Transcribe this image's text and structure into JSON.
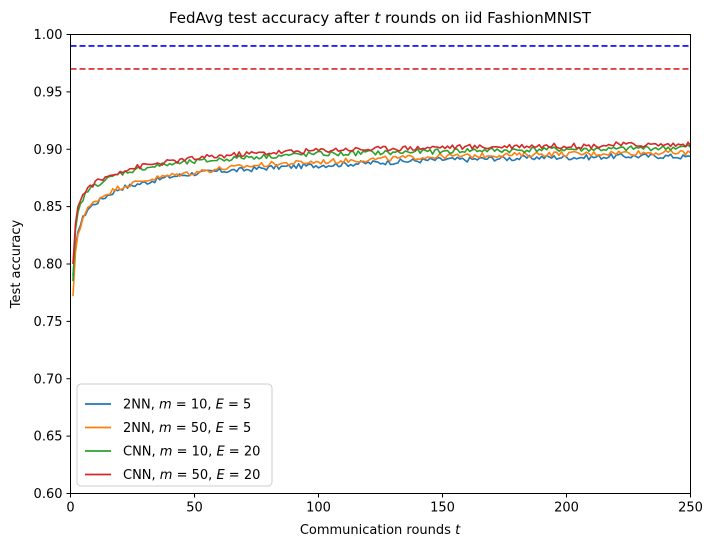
{
  "chart_data": {
    "type": "line",
    "title_parts": [
      "FedAvg test accuracy after ",
      "t",
      " rounds on iid FashionMNIST"
    ],
    "xlabel_parts": [
      "Communication rounds ",
      "t"
    ],
    "ylabel": "Test accuracy",
    "xlim": [
      0,
      250
    ],
    "ylim": [
      0.6,
      1.0
    ],
    "xticks": [
      0,
      50,
      100,
      150,
      200,
      250
    ],
    "xtick_labels": [
      "0",
      "50",
      "100",
      "150",
      "200",
      "250"
    ],
    "yticks": [
      0.6,
      0.65,
      0.7,
      0.75,
      0.8,
      0.85,
      0.9,
      0.95,
      1.0
    ],
    "ytick_labels": [
      "0.60",
      "0.65",
      "0.70",
      "0.75",
      "0.80",
      "0.85",
      "0.90",
      "0.95",
      "1.00"
    ],
    "grid": false,
    "legend_position": "lower-left",
    "reference_lines": [
      {
        "y": 0.99,
        "color": "#0000ff",
        "style": "dashed"
      },
      {
        "y": 0.97,
        "color": "#d62728",
        "style": "dashed"
      }
    ],
    "series": [
      {
        "legend_parts": [
          "2NN, ",
          "m",
          " = 10, ",
          "E",
          " = 5"
        ],
        "color": "#1f77b4",
        "x": [
          1,
          2,
          3,
          5,
          7,
          10,
          15,
          20,
          30,
          40,
          50,
          60,
          70,
          80,
          90,
          100,
          110,
          120,
          130,
          140,
          150,
          160,
          170,
          180,
          190,
          200,
          210,
          220,
          230,
          240,
          250
        ],
        "y": [
          0.79,
          0.815,
          0.828,
          0.84,
          0.848,
          0.853,
          0.86,
          0.866,
          0.871,
          0.876,
          0.879,
          0.881,
          0.882,
          0.884,
          0.885,
          0.886,
          0.887,
          0.888,
          0.889,
          0.89,
          0.891,
          0.891,
          0.892,
          0.892,
          0.893,
          0.893,
          0.893,
          0.894,
          0.894,
          0.894,
          0.893
        ]
      },
      {
        "legend_parts": [
          "2NN, ",
          "m",
          " = 50, ",
          "E",
          " = 5"
        ],
        "color": "#ff7f0e",
        "x": [
          1,
          2,
          3,
          5,
          7,
          10,
          15,
          20,
          30,
          40,
          50,
          60,
          70,
          80,
          90,
          100,
          110,
          120,
          130,
          140,
          150,
          160,
          170,
          180,
          190,
          200,
          210,
          220,
          230,
          240,
          250
        ],
        "y": [
          0.772,
          0.81,
          0.826,
          0.84,
          0.848,
          0.855,
          0.862,
          0.867,
          0.873,
          0.877,
          0.88,
          0.883,
          0.885,
          0.887,
          0.888,
          0.889,
          0.89,
          0.891,
          0.892,
          0.893,
          0.894,
          0.894,
          0.895,
          0.895,
          0.896,
          0.896,
          0.896,
          0.897,
          0.897,
          0.897,
          0.897
        ]
      },
      {
        "legend_parts": [
          "CNN, ",
          "m",
          " = 10, ",
          "E",
          " = 20"
        ],
        "color": "#2ca02c",
        "x": [
          1,
          2,
          3,
          5,
          7,
          10,
          15,
          20,
          30,
          40,
          50,
          60,
          70,
          80,
          90,
          100,
          110,
          120,
          130,
          140,
          150,
          160,
          170,
          180,
          190,
          200,
          210,
          220,
          230,
          240,
          250
        ],
        "y": [
          0.785,
          0.83,
          0.845,
          0.857,
          0.864,
          0.869,
          0.874,
          0.879,
          0.884,
          0.887,
          0.889,
          0.891,
          0.893,
          0.894,
          0.895,
          0.896,
          0.896,
          0.897,
          0.897,
          0.898,
          0.898,
          0.899,
          0.899,
          0.899,
          0.9,
          0.9,
          0.9,
          0.9,
          0.901,
          0.901,
          0.902
        ]
      },
      {
        "legend_parts": [
          "CNN, ",
          "m",
          " = 50, ",
          "E",
          " = 20"
        ],
        "color": "#d62728",
        "x": [
          1,
          2,
          3,
          5,
          7,
          10,
          15,
          20,
          30,
          40,
          50,
          60,
          70,
          80,
          90,
          100,
          110,
          120,
          130,
          140,
          150,
          160,
          170,
          180,
          190,
          200,
          210,
          220,
          230,
          240,
          250
        ],
        "y": [
          0.8,
          0.835,
          0.85,
          0.86,
          0.866,
          0.871,
          0.876,
          0.881,
          0.886,
          0.889,
          0.892,
          0.894,
          0.896,
          0.897,
          0.898,
          0.899,
          0.9,
          0.9,
          0.901,
          0.901,
          0.902,
          0.902,
          0.902,
          0.903,
          0.903,
          0.903,
          0.903,
          0.904,
          0.904,
          0.904,
          0.904
        ]
      }
    ]
  }
}
